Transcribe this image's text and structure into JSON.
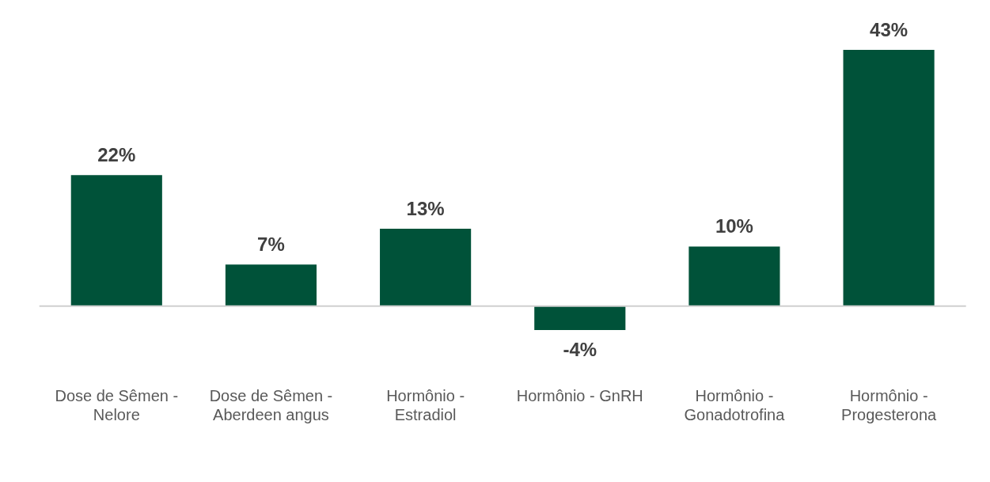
{
  "chart_data": {
    "type": "bar",
    "categories": [
      "Dose de Sêmen - Nelore",
      "Dose de Sêmen - Aberdeen angus",
      "Hormônio - Estradiol",
      "Hormônio - GnRH",
      "Hormônio - Gonadotrofina",
      "Hormônio - Progesterona"
    ],
    "values": [
      22,
      7,
      13,
      -4,
      10,
      43
    ],
    "value_labels": [
      "22%",
      "7%",
      "13%",
      "-4%",
      "10%",
      "43%"
    ],
    "color": "#005239",
    "grid": false,
    "legend": false
  }
}
